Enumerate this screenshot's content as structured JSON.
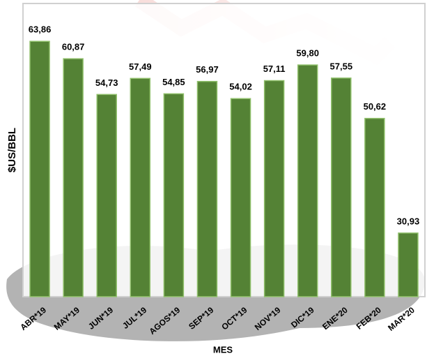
{
  "chart_data": {
    "type": "bar",
    "y_label": "$US/BBL",
    "x_label": "MES",
    "categories": [
      "ABR*19",
      "MAY*19",
      "JUN*19",
      "JUL*19",
      "AGOS*19",
      "SEP*19",
      "OCT*19",
      "NOV*19",
      "DIC*19",
      "ENE*20",
      "FEB*20",
      "MAR*20"
    ],
    "values": [
      63.86,
      60.87,
      54.73,
      57.49,
      54.85,
      56.97,
      54.02,
      57.11,
      59.8,
      57.55,
      50.62,
      30.93
    ],
    "value_labels": [
      "63,86",
      "60,87",
      "54,73",
      "57,49",
      "54,85",
      "56,97",
      "54,02",
      "57,11",
      "59,80",
      "57,55",
      "50,62",
      "30,93"
    ],
    "color": "#548235",
    "ylim": [
      20,
      70
    ]
  }
}
